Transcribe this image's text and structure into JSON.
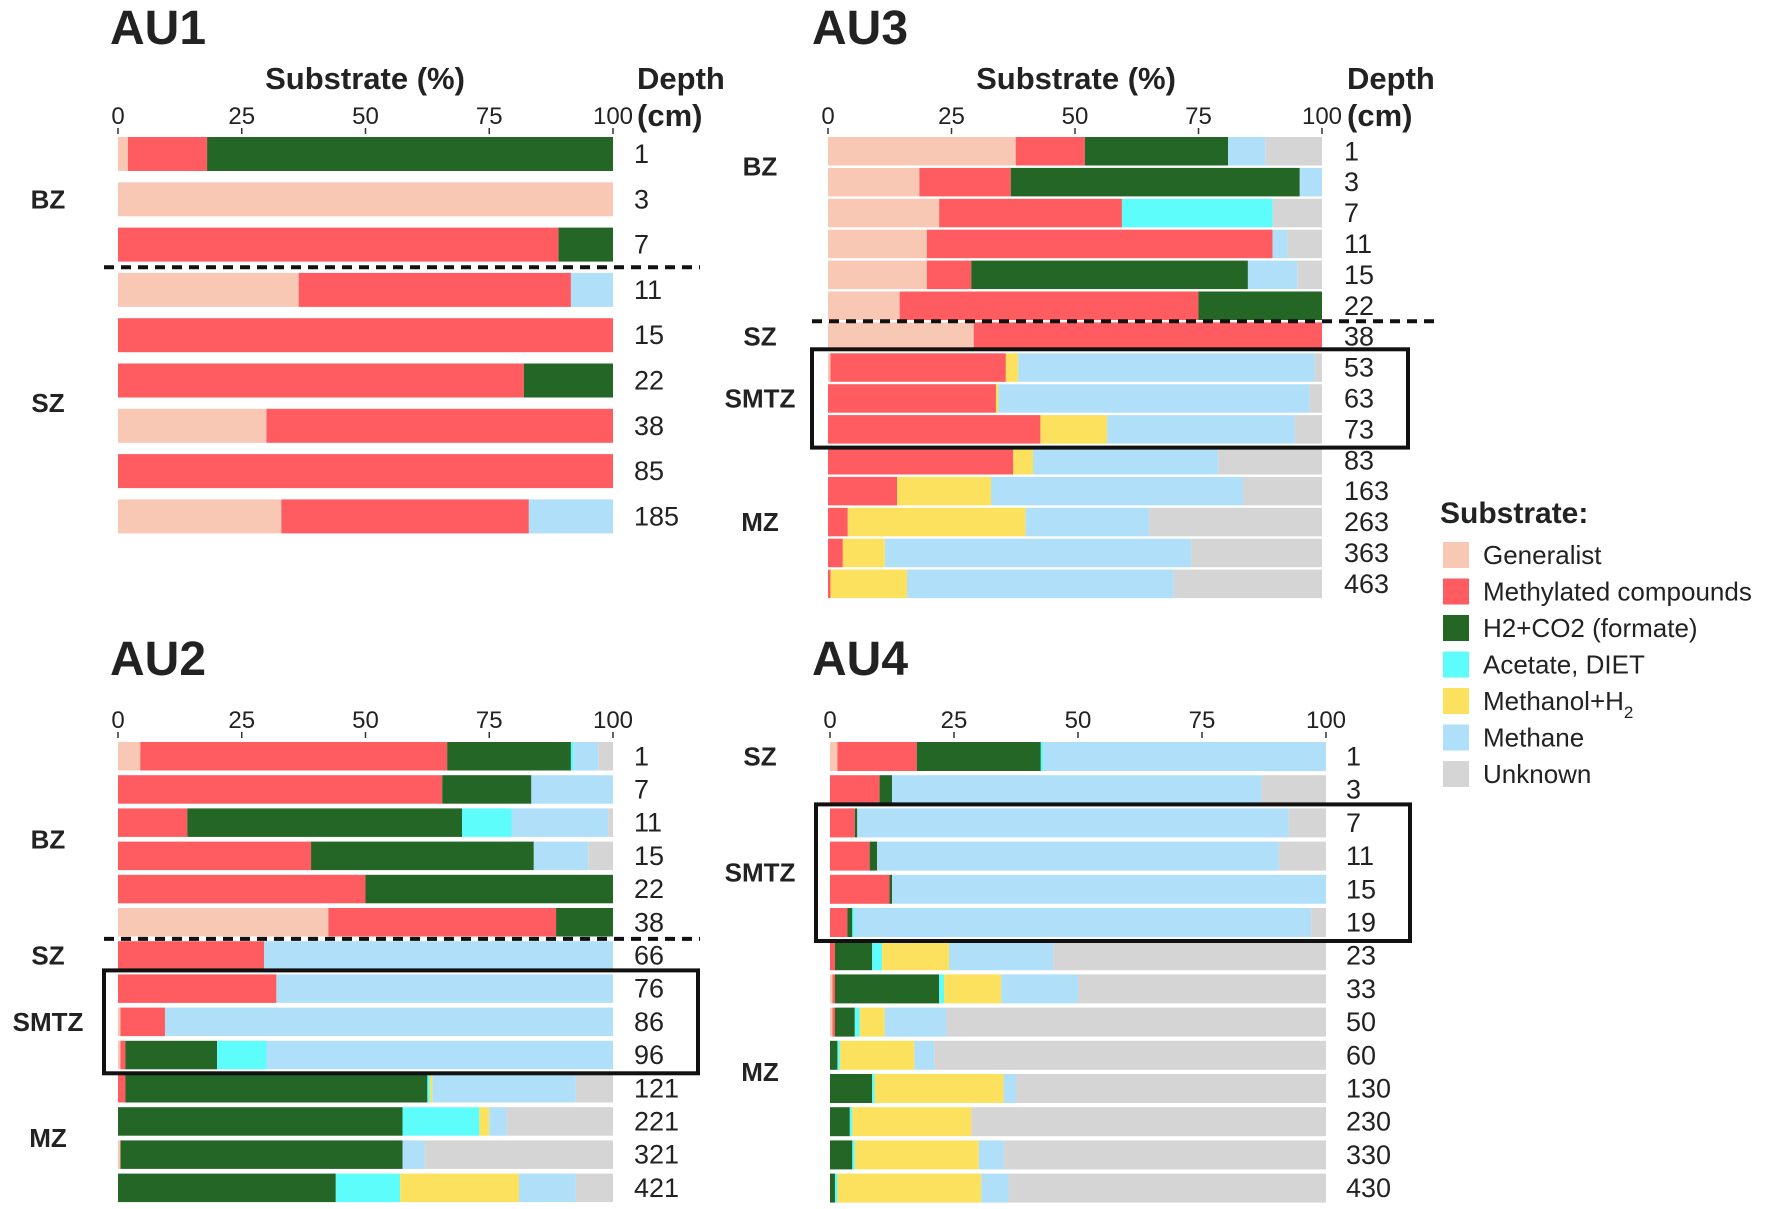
{
  "legend": {
    "title": "Substrate:",
    "items": [
      {
        "key": "generalist",
        "label": "Generalist",
        "color": "#f8c8b4"
      },
      {
        "key": "methylated",
        "label": "Methylated compounds",
        "color": "#fe5c60"
      },
      {
        "key": "h2co2",
        "label": "H2+CO2 (formate)",
        "color": "#236625"
      },
      {
        "key": "acetate",
        "label": "Acetate, DIET",
        "color": "#5dfdfc"
      },
      {
        "key": "methanol",
        "label": "Methanol+H",
        "sub": "2",
        "color": "#fbe15e"
      },
      {
        "key": "methane",
        "label": "Methane",
        "color": "#b0dff9"
      },
      {
        "key": "unknown",
        "label": "Unknown",
        "color": "#d5d5d5"
      }
    ]
  },
  "chart_data": [
    {
      "type": "bar",
      "orientation": "horizontal",
      "stacked": true,
      "title": "AU1",
      "xlabel": "Substrate (%)",
      "ylabel": "Depth (cm)",
      "xlim": [
        0,
        100
      ],
      "xticks": [
        0,
        25,
        50,
        75,
        100
      ],
      "depths": [
        "1",
        "3",
        "7",
        "11",
        "15",
        "22",
        "38",
        "85",
        "185"
      ],
      "values": [
        [
          2,
          16,
          82,
          0,
          0,
          0,
          0
        ],
        [
          100,
          0,
          0,
          0,
          0,
          0,
          0
        ],
        [
          0,
          89,
          11,
          0,
          0,
          0,
          0
        ],
        [
          36.5,
          55,
          0,
          0,
          0,
          8.5,
          0
        ],
        [
          0,
          100,
          0,
          0,
          0,
          0,
          0
        ],
        [
          0,
          82,
          18,
          0,
          0,
          0,
          0
        ],
        [
          30,
          70,
          0,
          0,
          0,
          0,
          0
        ],
        [
          0,
          100,
          0,
          0,
          0,
          0,
          0
        ],
        [
          33,
          50,
          0,
          0,
          0,
          17,
          0
        ]
      ],
      "zones": [
        {
          "name": "BZ",
          "from": 0,
          "to": 2
        },
        {
          "name": "SZ",
          "from": 3,
          "to": 8
        }
      ],
      "dashed_after": [
        2
      ],
      "box": null
    },
    {
      "type": "bar",
      "orientation": "horizontal",
      "stacked": true,
      "title": "AU3",
      "xlabel": "Substrate (%)",
      "ylabel": "Depth (cm)",
      "xlim": [
        0,
        100
      ],
      "xticks": [
        0,
        25,
        50,
        75,
        100
      ],
      "depths": [
        "1",
        "3",
        "7",
        "11",
        "15",
        "22",
        "38",
        "53",
        "63",
        "73",
        "83",
        "163",
        "263",
        "363",
        "463"
      ],
      "values": [
        [
          38,
          14,
          29,
          0,
          0,
          7.5,
          11.5
        ],
        [
          18.5,
          18.5,
          58.5,
          0,
          0,
          4.5,
          0
        ],
        [
          22.5,
          37,
          0,
          30.5,
          0,
          0,
          10
        ],
        [
          20,
          70,
          0,
          0,
          0,
          3,
          7
        ],
        [
          20,
          9,
          56,
          0,
          0,
          10,
          5
        ],
        [
          14.5,
          60.5,
          25,
          0,
          0,
          0,
          0
        ],
        [
          29.5,
          70.5,
          0,
          0,
          0,
          0,
          0
        ],
        [
          0.5,
          35.5,
          0,
          0,
          2.5,
          60,
          1.5
        ],
        [
          0,
          34,
          0,
          0,
          0.5,
          63,
          2.5
        ],
        [
          0,
          43,
          0,
          0,
          13.5,
          38,
          5.5
        ],
        [
          0,
          37.5,
          0,
          0,
          4,
          37.5,
          21
        ],
        [
          0,
          14,
          0,
          0,
          19,
          51,
          16
        ],
        [
          0,
          4,
          0,
          0,
          36,
          25,
          35
        ],
        [
          0,
          3,
          0,
          0,
          8.5,
          62,
          26.5
        ],
        [
          0,
          0.5,
          0,
          0,
          15.5,
          54,
          30
        ]
      ],
      "zones": [
        {
          "name": "BZ",
          "from": 0,
          "to": 1
        },
        {
          "name": "SZ",
          "from": 6,
          "to": 6
        },
        {
          "name": "SMTZ",
          "from": 7,
          "to": 9
        },
        {
          "name": "MZ",
          "from": 10,
          "to": 14
        }
      ],
      "dashed_after": [
        5
      ],
      "box": {
        "from": 7,
        "to": 9
      }
    },
    {
      "type": "bar",
      "orientation": "horizontal",
      "stacked": true,
      "title": "AU2",
      "xlabel": "",
      "ylabel": "",
      "xlim": [
        0,
        100
      ],
      "xticks": [
        0,
        25,
        50,
        75,
        100
      ],
      "depths": [
        "1",
        "7",
        "11",
        "15",
        "22",
        "38",
        "66",
        "76",
        "86",
        "96",
        "121",
        "221",
        "321",
        "421"
      ],
      "values": [
        [
          4.5,
          62,
          25,
          0.5,
          0,
          5,
          3
        ],
        [
          0,
          65.5,
          18,
          0,
          0,
          16.5,
          0
        ],
        [
          0,
          14,
          55.5,
          10,
          0,
          19.5,
          1
        ],
        [
          0,
          39,
          45,
          0,
          0,
          11,
          5
        ],
        [
          0,
          50,
          50,
          0,
          0,
          0,
          0
        ],
        [
          42.5,
          46,
          11.5,
          0,
          0,
          0,
          0
        ],
        [
          0,
          29.5,
          0,
          0,
          0,
          70.5,
          0
        ],
        [
          0,
          32,
          0,
          0,
          0,
          68,
          0
        ],
        [
          0.5,
          9,
          0,
          0,
          0,
          90.5,
          0
        ],
        [
          0.5,
          1,
          18.5,
          10,
          0,
          70,
          0
        ],
        [
          0,
          1.5,
          61,
          0.5,
          0.5,
          29,
          7.5
        ],
        [
          0,
          0,
          57.5,
          15.5,
          2,
          3.5,
          21.5
        ],
        [
          0.5,
          0,
          57,
          0,
          0,
          4.5,
          38
        ],
        [
          0,
          0,
          44,
          13,
          24,
          11.5,
          7.5
        ]
      ],
      "zones": [
        {
          "name": "BZ",
          "from": 0,
          "to": 5
        },
        {
          "name": "SZ",
          "from": 6,
          "to": 6
        },
        {
          "name": "SMTZ",
          "from": 7,
          "to": 9
        },
        {
          "name": "MZ",
          "from": 10,
          "to": 13
        }
      ],
      "dashed_after": [
        5
      ],
      "box": {
        "from": 7,
        "to": 9
      }
    },
    {
      "type": "bar",
      "orientation": "horizontal",
      "stacked": true,
      "title": "AU4",
      "xlabel": "",
      "ylabel": "",
      "xlim": [
        0,
        100
      ],
      "xticks": [
        0,
        25,
        50,
        75,
        100
      ],
      "depths": [
        "1",
        "3",
        "7",
        "11",
        "15",
        "19",
        "23",
        "33",
        "50",
        "60",
        "130",
        "230",
        "330",
        "430"
      ],
      "values": [
        [
          1.5,
          16,
          25,
          0.5,
          0,
          57,
          0
        ],
        [
          0,
          10,
          2.5,
          0,
          0,
          74.5,
          13
        ],
        [
          0,
          5,
          0.5,
          0,
          0,
          87,
          7.5
        ],
        [
          0,
          8,
          1.5,
          0,
          0,
          81,
          9.5
        ],
        [
          0,
          12,
          0.5,
          0,
          0,
          87.5,
          0
        ],
        [
          0,
          3.5,
          1,
          0.5,
          0,
          92,
          3
        ],
        [
          0,
          1,
          7.5,
          2,
          13.5,
          21,
          55
        ],
        [
          0.5,
          0.5,
          21,
          1,
          11.5,
          15.5,
          50
        ],
        [
          0.5,
          0.5,
          4,
          1,
          5,
          12.5,
          76.5
        ],
        [
          0,
          0,
          1.5,
          0.5,
          15,
          4,
          79
        ],
        [
          0,
          0,
          8.5,
          0.5,
          26,
          2.5,
          62.5
        ],
        [
          0,
          0,
          4,
          0.5,
          24,
          0,
          71.5
        ],
        [
          0,
          0,
          4.5,
          0.5,
          25,
          5,
          65
        ],
        [
          0,
          0,
          1,
          0.5,
          29,
          5.5,
          64
        ]
      ],
      "zones": [
        {
          "name": "SZ",
          "from": 0,
          "to": 0
        },
        {
          "name": "SMTZ",
          "from": 2,
          "to": 5
        },
        {
          "name": "MZ",
          "from": 6,
          "to": 13
        }
      ],
      "dashed_after": [],
      "box": {
        "from": 2,
        "to": 5
      }
    }
  ]
}
